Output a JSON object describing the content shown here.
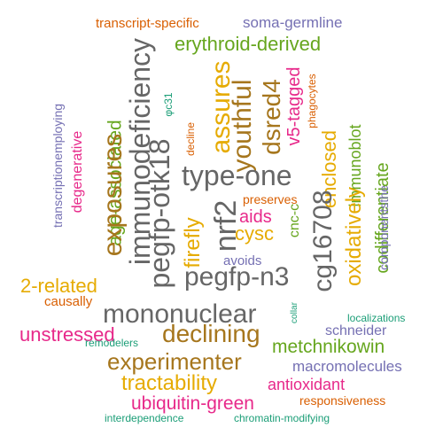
{
  "colors": {
    "orange": "#d95f02",
    "purple": "#7570b3",
    "magenta": "#e7298a",
    "green": "#66a61e",
    "gold": "#e6ab02",
    "brown": "#a6761d",
    "gray": "#666666",
    "teal": "#1b9e77"
  },
  "words": {
    "transcript_specific": "transcript-specific",
    "soma_germline": "soma-germline",
    "erythroid_derived": "erythroid-derived",
    "immunodeficiency": "immunodeficiency",
    "assures": "assures",
    "youthful": "youthful",
    "dsred4": "dsred4",
    "v5_tagged": "v5-tagged",
    "phagocytes": "phagocytes",
    "enclosed": "enclosed",
    "immunoblot": "immunoblot",
    "fc31": "φc31",
    "decline": "decline",
    "transcriptionemploying": "transcriptionemploying",
    "degenerative": "degenerative",
    "age_associated": "age-associated",
    "exposures": "exposures",
    "pegfp_otk18": "pegfp-otk18",
    "type_one": "type-one",
    "nrf2": "nrf2",
    "firefly": "firefly",
    "preserves": "preserves",
    "aids": "aids",
    "cysc": "cysc",
    "cnc_c": "cnc-c",
    "cg16708": "cg16708",
    "oxidatively": "oxidatively",
    "codifferentiate": "codifferentiate",
    "componentsthe": "componentsthe",
    "avoids": "avoids",
    "pegfp_n3": "pegfp-n3",
    "two_related": "2-related",
    "causally": "causally",
    "mononuclear": "mononuclear",
    "collar": "collar",
    "localizations": "localizations",
    "schneider": "schneider",
    "unstressed": "unstressed",
    "declining": "declining",
    "metchnikowin": "metchnikowin",
    "remodelers": "remodelers",
    "experimenter": "experimenter",
    "macromolecules": "macromolecules",
    "tractability": "tractability",
    "antioxidant": "antioxidant",
    "ubiquitin_green": "ubiquitin-green",
    "responsiveness": "responsiveness",
    "interdependence": "interdependence",
    "chromatin_modifying": "chromatin-modifying"
  },
  "word_colors": {
    "transcript_specific": "orange",
    "soma_germline": "purple",
    "erythroid_derived": "green",
    "immunodeficiency": "gray",
    "assures": "gold",
    "youthful": "brown",
    "dsred4": "brown",
    "v5_tagged": "magenta",
    "phagocytes": "orange",
    "enclosed": "gold",
    "immunoblot": "green",
    "fc31": "teal",
    "decline": "orange",
    "transcriptionemploying": "purple",
    "degenerative": "magenta",
    "age_associated": "green",
    "exposures": "brown",
    "pegfp_otk18": "gray",
    "type_one": "gray",
    "nrf2": "gray",
    "firefly": "gold",
    "preserves": "orange",
    "aids": "magenta",
    "cysc": "gold",
    "cnc_c": "green",
    "cg16708": "gray",
    "oxidatively": "gold",
    "codifferentiate": "green",
    "componentsthe": "purple",
    "avoids": "purple",
    "pegfp_n3": "gray",
    "two_related": "gold",
    "causally": "orange",
    "mononuclear": "gray",
    "collar": "teal",
    "localizations": "teal",
    "schneider": "purple",
    "unstressed": "magenta",
    "declining": "brown",
    "metchnikowin": "green",
    "remodelers": "teal",
    "experimenter": "brown",
    "macromolecules": "purple",
    "tractability": "gold",
    "antioxidant": "magenta",
    "ubiquitin_green": "magenta",
    "responsiveness": "orange",
    "interdependence": "teal",
    "chromatin_modifying": "teal"
  }
}
